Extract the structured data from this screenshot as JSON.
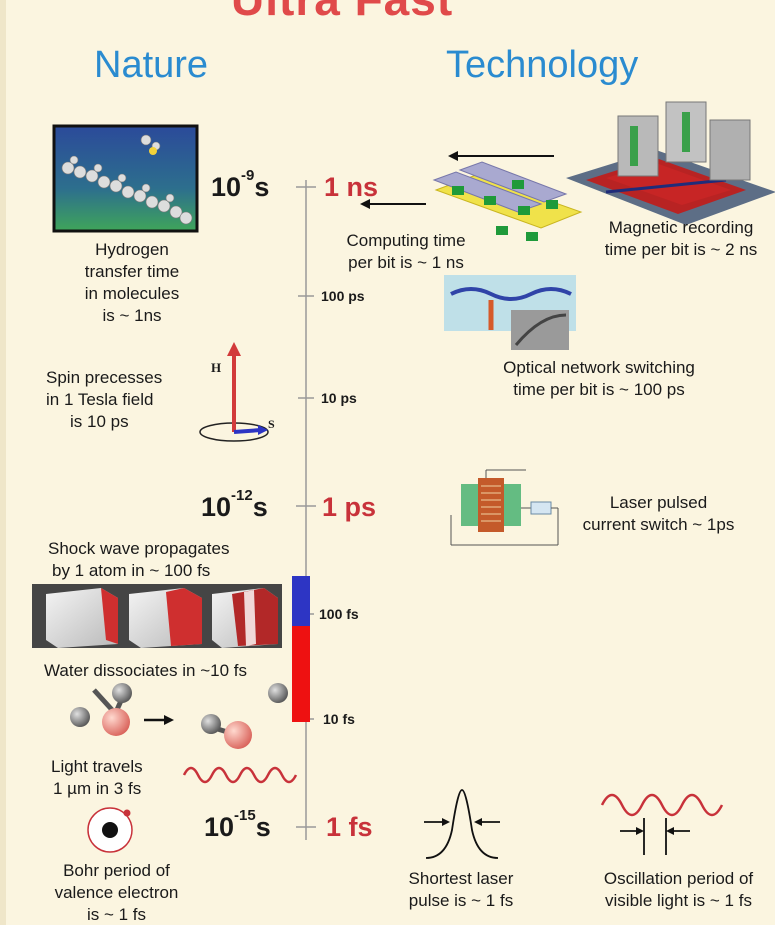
{
  "title": "Ultra Fast",
  "headers": {
    "nature": "Nature",
    "technology": "Technology"
  },
  "scale": {
    "major": [
      {
        "exp": "-9",
        "base": "10",
        "unit": "s",
        "label": "1 ns"
      },
      {
        "exp": "-12",
        "base": "10",
        "unit": "s",
        "label": "1 ps"
      },
      {
        "exp": "-15",
        "base": "10",
        "unit": "s",
        "label": "1 fs"
      }
    ],
    "minor": [
      "100 ps",
      "10 ps",
      "100 fs",
      "10 fs"
    ]
  },
  "nature": {
    "hydrogen": [
      "Hydrogen",
      "transfer time",
      "in molecules",
      "is ~ 1ns"
    ],
    "spin": [
      "Spin precesses",
      "in 1 Tesla field",
      "is 10 ps"
    ],
    "spin_H": "H",
    "spin_S": "S",
    "shock": [
      "Shock wave propagates",
      "by 1 atom in ~ 100 fs"
    ],
    "water": "Water dissociates in ~10 fs",
    "light": [
      "Light travels",
      "1 µm in 3 fs"
    ],
    "bohr": [
      "Bohr period of",
      "valence electron",
      "is ~ 1 fs"
    ]
  },
  "technology": {
    "magnetic": [
      "Magnetic recording",
      "time per bit is ~ 2 ns"
    ],
    "computing": [
      "Computing time",
      "per bit is ~ 1 ns"
    ],
    "optical": [
      "Optical network switching",
      "time per bit is ~ 100 ps"
    ],
    "laser_switch": [
      "Laser pulsed",
      "current switch ~ 1ps"
    ],
    "shortest_pulse": [
      "Shortest laser",
      "pulse is ~ 1 fs"
    ],
    "oscillation": [
      "Oscillation period of",
      "visible light is ~ 1 fs"
    ]
  },
  "colors": {
    "accent_red": "#c8323a",
    "header_blue": "#2a8bd0",
    "bar_blue": "#2d35c4",
    "bar_red": "#ee1111"
  }
}
